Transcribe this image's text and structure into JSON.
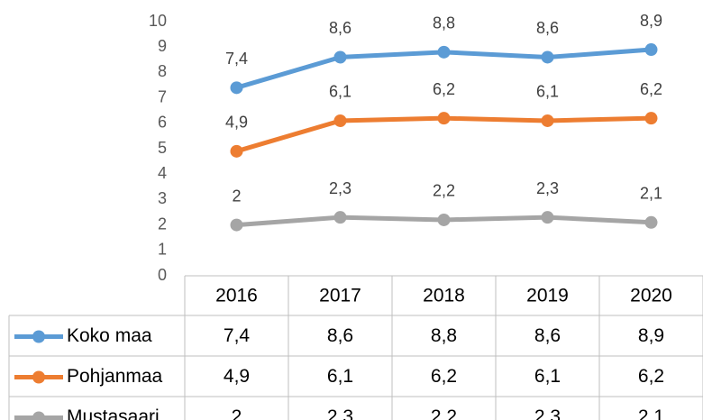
{
  "chart_data": {
    "type": "line",
    "categories": [
      "2016",
      "2017",
      "2018",
      "2019",
      "2020"
    ],
    "series": [
      {
        "name": "Koko maa",
        "color": "#5b9bd5",
        "values": [
          7.4,
          8.6,
          8.8,
          8.6,
          8.9
        ],
        "value_labels": [
          "7,4",
          "8,6",
          "8,8",
          "8,6",
          "8,9"
        ]
      },
      {
        "name": "Pohjanmaa",
        "color": "#ed7d31",
        "values": [
          4.9,
          6.1,
          6.2,
          6.1,
          6.2
        ],
        "value_labels": [
          "4,9",
          "6,1",
          "6,2",
          "6,1",
          "6,2"
        ]
      },
      {
        "name": "Mustasaari",
        "color": "#a5a5a5",
        "values": [
          2,
          2.3,
          2.2,
          2.3,
          2.1
        ],
        "value_labels": [
          "2",
          "2,3",
          "2,2",
          "2,3",
          "2,1"
        ]
      }
    ],
    "ylim": [
      0,
      10
    ],
    "yticks": [
      0,
      1,
      2,
      3,
      4,
      5,
      6,
      7,
      8,
      9,
      10
    ],
    "grid": false,
    "data_table": true
  }
}
